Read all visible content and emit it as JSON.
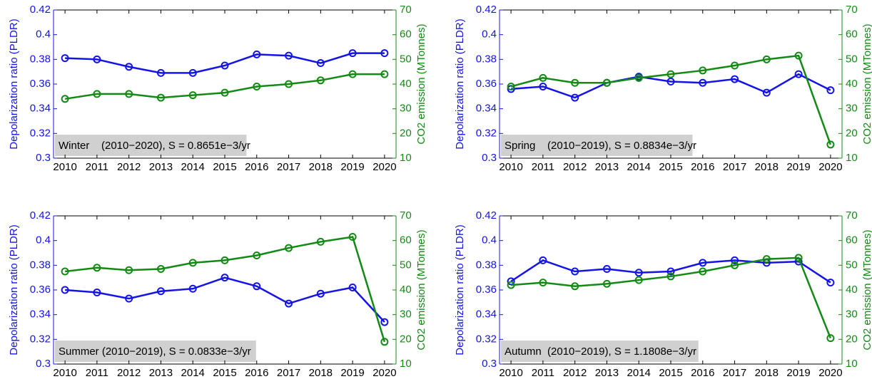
{
  "chart_data": [
    {
      "type": "line",
      "annotation": "Winter    (2010−2020), S = 0.8651e−3/yr",
      "ylabel": "Depolarization ratio (PLDR)",
      "y2label": "CO2 emission (MTonnes)",
      "x": [
        2010,
        2011,
        2012,
        2013,
        2014,
        2015,
        2016,
        2017,
        2018,
        2019,
        2020
      ],
      "xlim": [
        2009.64,
        2020.36
      ],
      "xticks": [
        2010,
        2011,
        2012,
        2013,
        2014,
        2015,
        2016,
        2017,
        2018,
        2019,
        2020
      ],
      "ylim": [
        0.3,
        0.42
      ],
      "yticks": [
        0.3,
        0.32,
        0.34,
        0.36,
        0.38,
        0.4,
        0.42
      ],
      "y2lim": [
        10,
        70
      ],
      "y2ticks": [
        10,
        20,
        30,
        40,
        50,
        60,
        70
      ],
      "grid": false,
      "series": [
        {
          "color": "#1414e6",
          "values": [
            0.381,
            0.38,
            0.374,
            0.369,
            0.369,
            0.375,
            0.384,
            0.383,
            0.377,
            0.385,
            0.385
          ]
        },
        {
          "color": "#138a13",
          "axis": "y2",
          "values": [
            34,
            36,
            36,
            34.5,
            35.5,
            36.5,
            39,
            40,
            41.5,
            44,
            44
          ]
        }
      ]
    },
    {
      "type": "line",
      "annotation": "Spring    (2010−2019), S = 0.8834e−3/yr",
      "ylabel": "Depolarization ratio (PLDR)",
      "y2label": "CO2 emission (MTonnes)",
      "x": [
        2010,
        2011,
        2012,
        2013,
        2014,
        2015,
        2016,
        2017,
        2018,
        2019,
        2020
      ],
      "xlim": [
        2009.64,
        2020.36
      ],
      "xticks": [
        2010,
        2011,
        2012,
        2013,
        2014,
        2015,
        2016,
        2017,
        2018,
        2019,
        2020
      ],
      "ylim": [
        0.3,
        0.42
      ],
      "yticks": [
        0.3,
        0.32,
        0.34,
        0.36,
        0.38,
        0.4,
        0.42
      ],
      "y2lim": [
        10,
        70
      ],
      "y2ticks": [
        10,
        20,
        30,
        40,
        50,
        60,
        70
      ],
      "grid": false,
      "series": [
        {
          "color": "#1414e6",
          "values": [
            0.356,
            0.358,
            0.349,
            0.361,
            0.366,
            0.362,
            0.361,
            0.364,
            0.353,
            0.368,
            0.355
          ]
        },
        {
          "color": "#138a13",
          "axis": "y2",
          "values": [
            39,
            42.5,
            40.5,
            40.5,
            42.5,
            44,
            45.5,
            47.5,
            50,
            51.5,
            15.5
          ]
        }
      ]
    },
    {
      "type": "line",
      "annotation": "Summer (2010−2019), S = 0.0833e−3/yr",
      "ylabel": "Depolarization ratio (PLDR)",
      "y2label": "CO2 emission (MTonnes)",
      "x": [
        2010,
        2011,
        2012,
        2013,
        2014,
        2015,
        2016,
        2017,
        2018,
        2019,
        2020
      ],
      "xlim": [
        2009.64,
        2020.36
      ],
      "xticks": [
        2010,
        2011,
        2012,
        2013,
        2014,
        2015,
        2016,
        2017,
        2018,
        2019,
        2020
      ],
      "ylim": [
        0.3,
        0.42
      ],
      "yticks": [
        0.3,
        0.32,
        0.34,
        0.36,
        0.38,
        0.4,
        0.42
      ],
      "y2lim": [
        10,
        70
      ],
      "y2ticks": [
        10,
        20,
        30,
        40,
        50,
        60,
        70
      ],
      "grid": false,
      "series": [
        {
          "color": "#1414e6",
          "values": [
            0.36,
            0.358,
            0.353,
            0.359,
            0.361,
            0.37,
            0.363,
            0.349,
            0.357,
            0.362,
            0.334
          ]
        },
        {
          "color": "#138a13",
          "axis": "y2",
          "values": [
            47.5,
            49,
            48,
            48.5,
            51,
            52,
            54,
            57,
            59.5,
            61.5,
            19
          ]
        }
      ]
    },
    {
      "type": "line",
      "annotation": "Autumn  (2010−2019), S = 1.1808e−3/yr",
      "ylabel": "Depolarization ratio (PLDR)",
      "y2label": "CO2 emission (MTonnes)",
      "x": [
        2010,
        2011,
        2012,
        2013,
        2014,
        2015,
        2016,
        2017,
        2018,
        2019,
        2020
      ],
      "xlim": [
        2009.64,
        2020.36
      ],
      "xticks": [
        2010,
        2011,
        2012,
        2013,
        2014,
        2015,
        2016,
        2017,
        2018,
        2019,
        2020
      ],
      "ylim": [
        0.3,
        0.42
      ],
      "yticks": [
        0.3,
        0.32,
        0.34,
        0.36,
        0.38,
        0.4,
        0.42
      ],
      "y2lim": [
        10,
        70
      ],
      "y2ticks": [
        10,
        20,
        30,
        40,
        50,
        60,
        70
      ],
      "grid": false,
      "series": [
        {
          "color": "#1414e6",
          "values": [
            0.367,
            0.384,
            0.375,
            0.377,
            0.374,
            0.375,
            0.382,
            0.384,
            0.382,
            0.383,
            0.366
          ]
        },
        {
          "color": "#138a13",
          "axis": "y2",
          "values": [
            42,
            43,
            41.5,
            42.5,
            44,
            45.5,
            47.5,
            50,
            52.5,
            53,
            20.5
          ]
        }
      ]
    }
  ]
}
